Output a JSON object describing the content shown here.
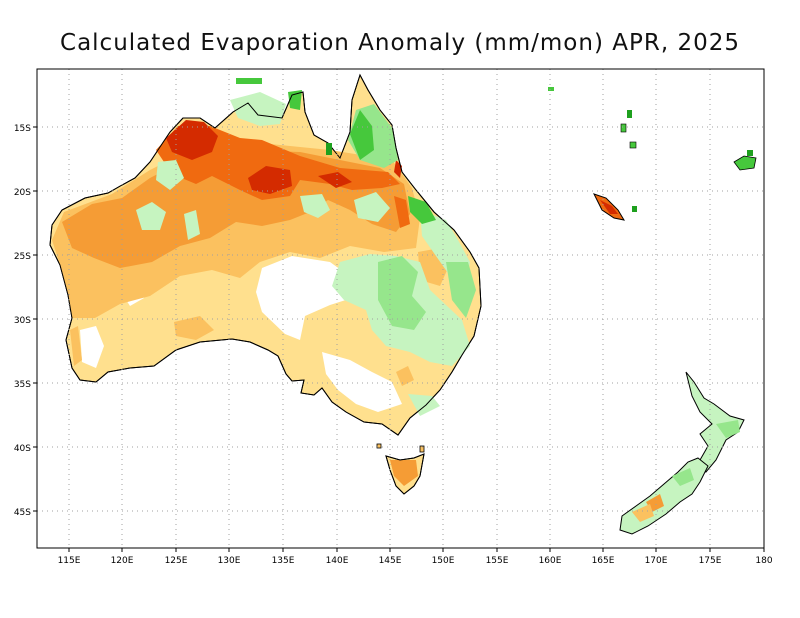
{
  "title": "Calculated Evaporation Anomaly (mm/mon) APR, 2025",
  "axes": {
    "lon_ticks": [
      "115E",
      "120E",
      "125E",
      "130E",
      "135E",
      "140E",
      "145E",
      "150E",
      "155E",
      "160E",
      "165E",
      "170E",
      "175E",
      "180"
    ],
    "lat_ticks": [
      "15S",
      "20S",
      "25S",
      "30S",
      "35S",
      "40S",
      "45S"
    ]
  },
  "colors": {
    "dark_red": "#d42b00",
    "red_orange": "#f06a10",
    "orange": "#f59c35",
    "light_orange": "#fbc15f",
    "pale_yellow": "#ffe08e",
    "pale_green": "#c6f4c0",
    "light_green": "#96e68c",
    "green": "#46c83c",
    "dark_green": "#1ea01e",
    "grid": "#a0a0a0",
    "coast": "#000000"
  }
}
